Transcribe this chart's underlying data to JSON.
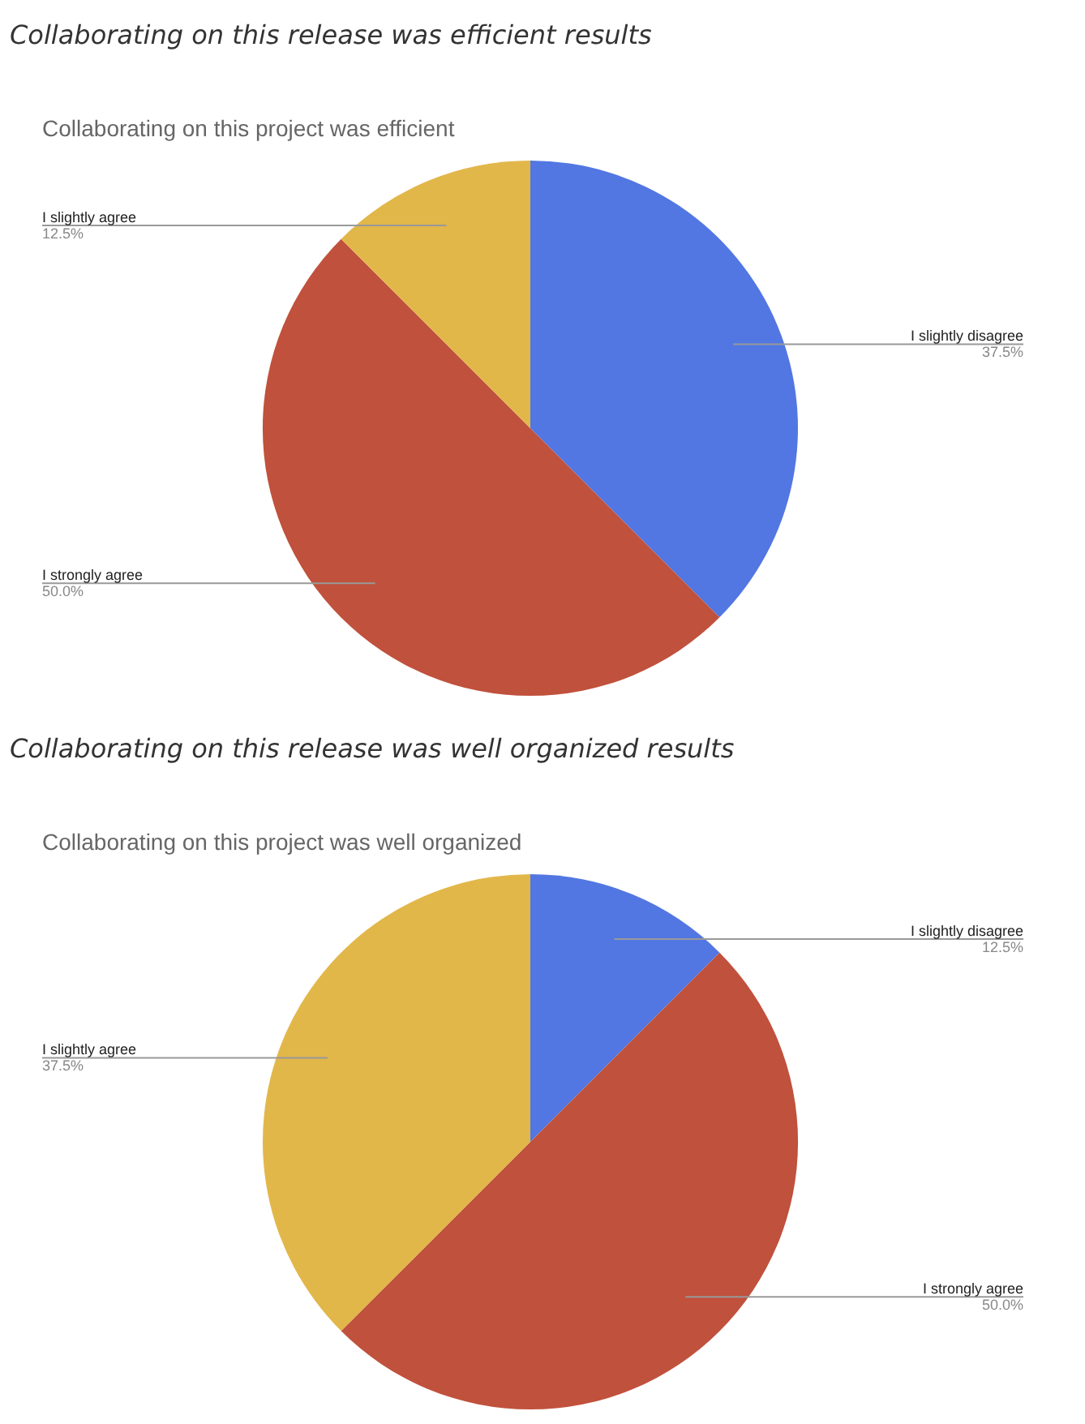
{
  "chart_data": [
    {
      "type": "pie",
      "title": "Collaborating on this release was efficient results",
      "subtitle": "Collaborating on this project was efficient",
      "categories": [
        "I slightly disagree",
        "I strongly agree",
        "I slightly agree"
      ],
      "values": [
        37.5,
        50.0,
        12.5
      ],
      "value_labels": [
        "37.5%",
        "50.0%",
        "12.5%"
      ],
      "colors": [
        "#5277e2",
        "#c0513c",
        "#e2b74a"
      ]
    },
    {
      "type": "pie",
      "title": "Collaborating on this release was well organized results",
      "subtitle": "Collaborating on this project was well organized",
      "categories": [
        "I slightly disagree",
        "I strongly agree",
        "I slightly agree"
      ],
      "values": [
        12.5,
        50.0,
        37.5
      ],
      "value_labels": [
        "12.5%",
        "50.0%",
        "37.5%"
      ],
      "colors": [
        "#5277e2",
        "#c0513c",
        "#e2b74a"
      ]
    }
  ]
}
